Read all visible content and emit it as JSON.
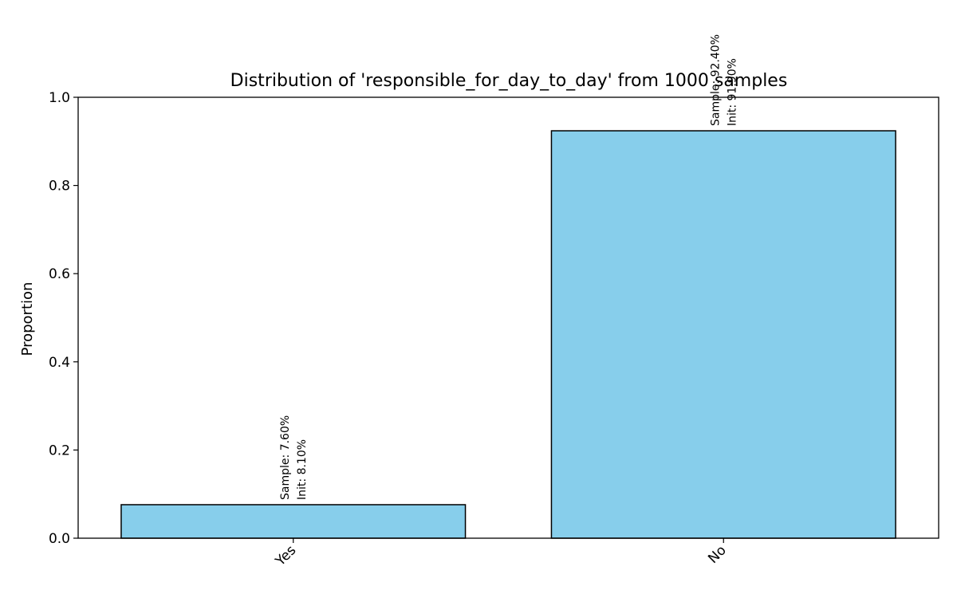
{
  "chart_data": {
    "type": "bar",
    "title": "Distribution of 'responsible_for_day_to_day' from 1000 samples",
    "xlabel": "",
    "ylabel": "Proportion",
    "categories": [
      "Yes",
      "No"
    ],
    "values": [
      0.076,
      0.924
    ],
    "sample_labels": [
      "Sample: 7.60%",
      "Sample: 92.40%"
    ],
    "init_labels": [
      "Init: 8.10%",
      "Init: 91.90%"
    ],
    "ylim": [
      0,
      1.0
    ],
    "yticks": [
      0.0,
      0.2,
      0.4,
      0.6,
      0.8,
      1.0
    ],
    "ytick_labels": [
      "0.0",
      "0.2",
      "0.4",
      "0.6",
      "0.8",
      "1.0"
    ],
    "grid": false,
    "bar_color": "#87CEEB",
    "edge_color": "#000000"
  }
}
